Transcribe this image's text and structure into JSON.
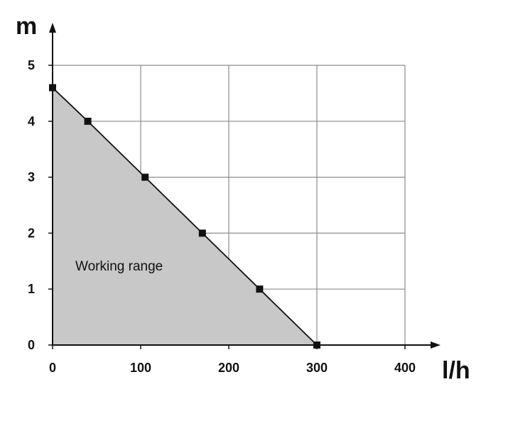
{
  "chart_data": {
    "type": "area",
    "title": "",
    "xlabel": "l/h",
    "ylabel": "m",
    "xlim": [
      0,
      400
    ],
    "ylim": [
      0,
      5
    ],
    "x_ticks": [
      "0",
      "100",
      "200",
      "300",
      "400"
    ],
    "y_ticks": [
      "0",
      "1",
      "2",
      "3",
      "4",
      "5"
    ],
    "grid": true,
    "series": [
      {
        "x": [
          0,
          40,
          105,
          170,
          235,
          300
        ],
        "y": [
          4.6,
          4,
          3,
          2,
          1,
          0
        ]
      }
    ],
    "annotation": "Working range",
    "fill_color": "#c8c8c8",
    "line_color": "#111111",
    "grid_color": "#8c8c8c"
  }
}
